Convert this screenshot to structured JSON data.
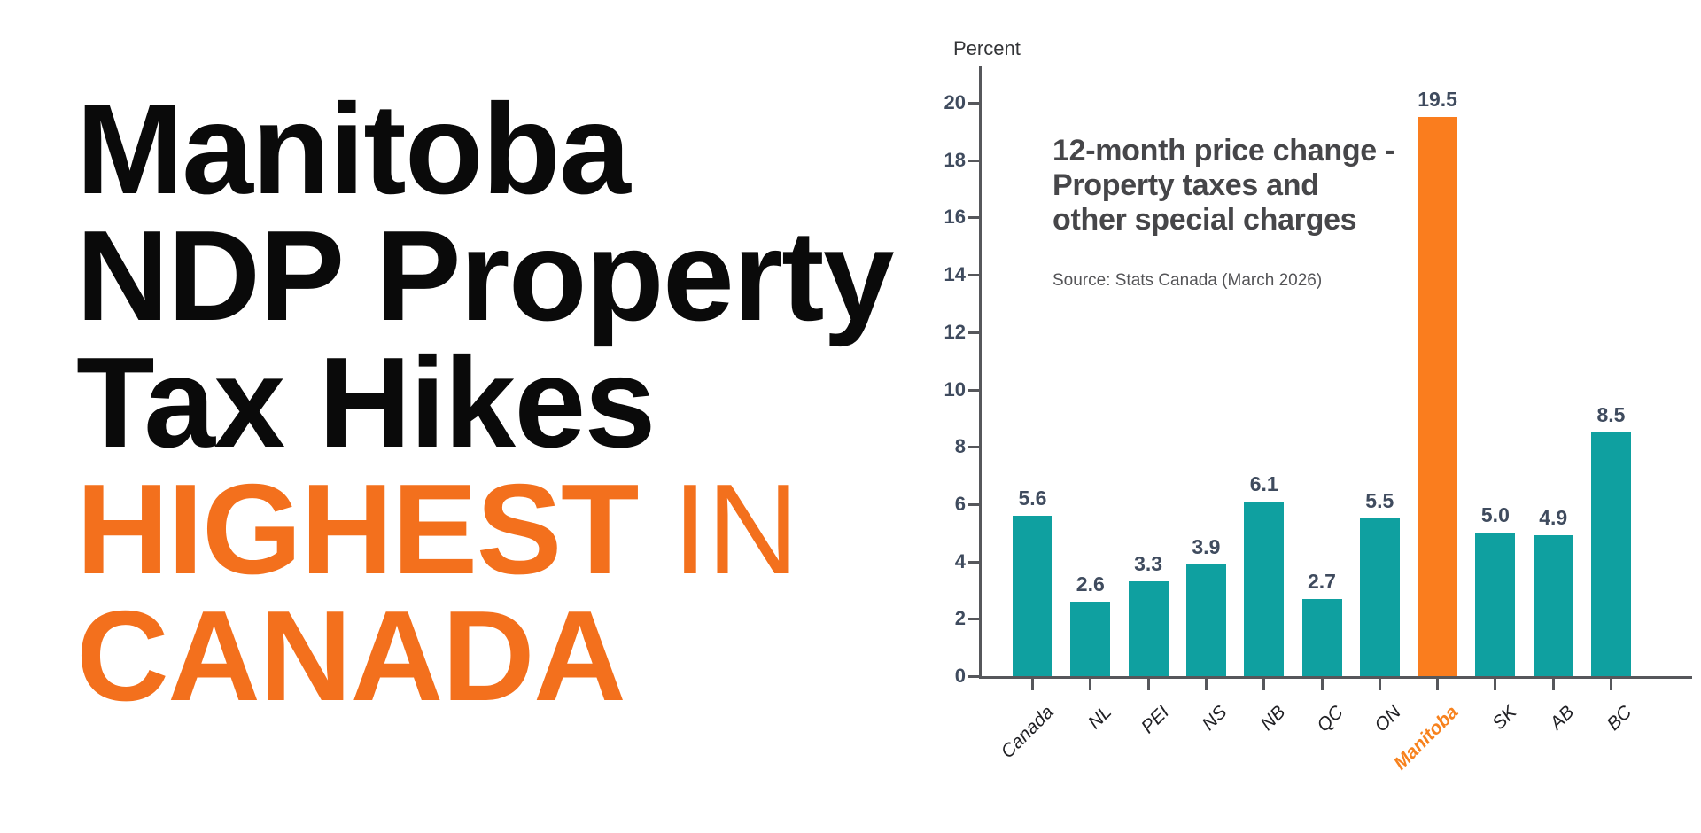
{
  "headline": {
    "line1": "Manitoba",
    "line2": "NDP Property",
    "line3": "Tax Hikes",
    "line4_strong": "HIGHEST ",
    "line4_light": "IN",
    "line5": "CANADA",
    "black_color": "#0a0a0a",
    "orange_color": "#f3701d"
  },
  "chart_data": {
    "type": "bar",
    "title_lines": [
      "12-month price change -",
      "Property taxes and",
      "other special charges"
    ],
    "source": "Source: Stats Canada (March 2026)",
    "ylabel": "Percent",
    "categories": [
      "Canada",
      "NL",
      "PEI",
      "NS",
      "NB",
      "QC",
      "ON",
      "Manitoba",
      "SK",
      "AB",
      "BC"
    ],
    "values": [
      5.6,
      2.6,
      3.3,
      3.9,
      6.1,
      2.7,
      5.5,
      19.5,
      5.0,
      4.9,
      8.5
    ],
    "highlight_index": 7,
    "highlight_category": "Manitoba",
    "ylim": [
      0,
      20
    ],
    "yticks": [
      0,
      2,
      4,
      6,
      8,
      10,
      12,
      14,
      16,
      18,
      20
    ],
    "grid": false,
    "legend": null,
    "bar_color": "#0fa0a0",
    "highlight_bar_color": "#fa7d1e",
    "highlight_label_color": "#f7821e",
    "axis_color": "#56575b",
    "tick_label_color": "#3f4b5e"
  }
}
